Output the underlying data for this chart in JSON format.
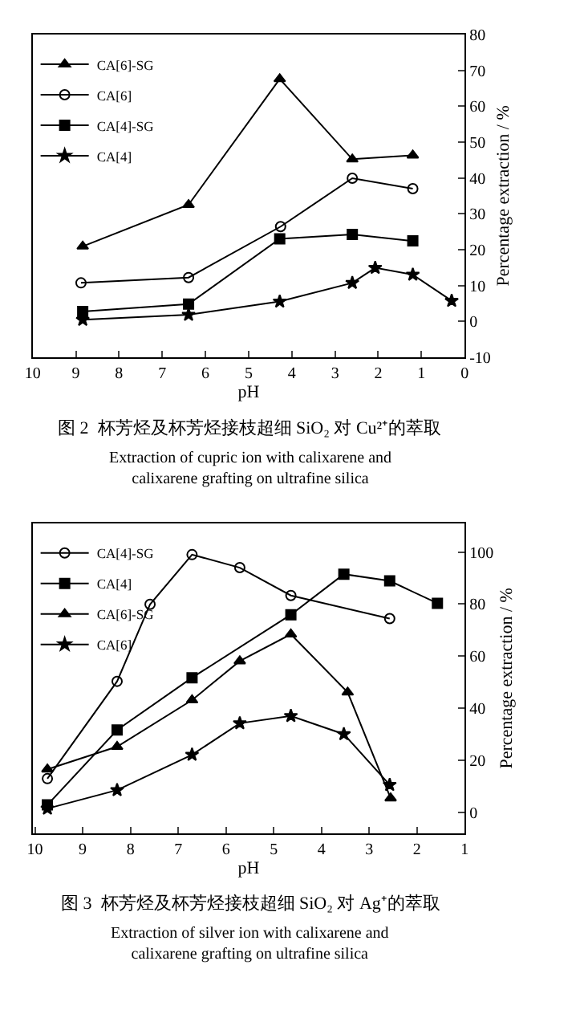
{
  "chart_data": [
    {
      "type": "line",
      "xlabel": "pH",
      "ylabel": "Percentage extraction / %",
      "xlim": [
        10,
        0
      ],
      "ylim": [
        -10,
        80
      ],
      "xticks": [
        0,
        1,
        2,
        3,
        4,
        5,
        6,
        7,
        8,
        9,
        10
      ],
      "yticks": [
        -10,
        0,
        10,
        20,
        30,
        40,
        50,
        60,
        70,
        80
      ],
      "grid": false,
      "legend": "top left",
      "annotations": [
        "图 2  杯芳烃及杯芳烃接枝超细 SiO₂ 对 Cu²⁺的萃取",
        "Extraction of cupric ion with calixarene and calixarene grafting on ultrafine silica"
      ],
      "series": [
        {
          "name": "CA[6]-SG",
          "color": "#000000",
          "marker": "triangle",
          "x": [
            8.84,
            6.39,
            4.28,
            2.6,
            1.2
          ],
          "values": [
            20.9,
            32.5,
            67.6,
            45.2,
            46.3
          ]
        },
        {
          "name": "CA[6]",
          "color": "#000000",
          "marker": "circle",
          "x": [
            8.88,
            6.39,
            4.26,
            2.6,
            1.2
          ],
          "values": [
            10.7,
            12.2,
            26.4,
            39.9,
            37.0
          ]
        },
        {
          "name": "CA[4]-SG",
          "color": "#000000",
          "marker": "square",
          "x": [
            8.84,
            6.39,
            4.28,
            2.6,
            1.2
          ],
          "values": [
            2.7,
            4.8,
            23.0,
            24.2,
            22.4
          ]
        },
        {
          "name": "CA[4]",
          "color": "#000000",
          "marker": "star",
          "x": [
            8.84,
            6.39,
            4.28,
            2.6,
            2.07,
            1.2,
            0.3
          ],
          "values": [
            0.4,
            1.8,
            5.5,
            10.7,
            14.9,
            13.0,
            5.7
          ]
        }
      ]
    },
    {
      "type": "line",
      "xlabel": "pH",
      "ylabel": "Percentage extraction / %",
      "xlim": [
        10.05,
        1
      ],
      "ylim": [
        -8,
        111
      ],
      "xticks": [
        1,
        2,
        3,
        4,
        5,
        6,
        7,
        8,
        9,
        10
      ],
      "yticks": [
        0,
        20,
        40,
        60,
        80,
        100
      ],
      "grid": false,
      "legend": "top left",
      "annotations": [
        "图 3  杯芳烃及杯芳烃接枝超细 SiO₂ 对 Ag⁺的萃取",
        "Extraction of silver ion with calixarene and calixarene grafting on ultrafine silica"
      ],
      "series": [
        {
          "name": "CA[4]-SG",
          "color": "#000000",
          "marker": "circle",
          "x": [
            9.74,
            8.28,
            7.59,
            6.71,
            5.71,
            4.64,
            2.57
          ],
          "values": [
            12.9,
            50.3,
            79.9,
            99.0,
            94.0,
            83.3,
            74.4
          ]
        },
        {
          "name": "CA[4]",
          "color": "#000000",
          "marker": "square",
          "x": [
            9.74,
            8.28,
            6.71,
            4.64,
            3.53,
            2.57,
            1.57
          ],
          "values": [
            2.8,
            31.6,
            51.7,
            75.9,
            91.5,
            88.9,
            80.3
          ]
        },
        {
          "name": "CA[6]-SG",
          "color": "#000000",
          "marker": "triangle",
          "x": [
            9.74,
            8.28,
            6.71,
            5.71,
            4.64,
            3.45,
            2.55
          ],
          "values": [
            16.5,
            25.2,
            43.1,
            58.1,
            68.4,
            46.1,
            5.4
          ]
        },
        {
          "name": "CA[6]",
          "color": "#000000",
          "marker": "star",
          "x": [
            9.74,
            8.28,
            6.71,
            5.71,
            4.64,
            3.53,
            2.57
          ],
          "values": [
            1.4,
            8.5,
            22.1,
            34.2,
            37.0,
            30.0,
            10.5
          ]
        }
      ]
    }
  ]
}
